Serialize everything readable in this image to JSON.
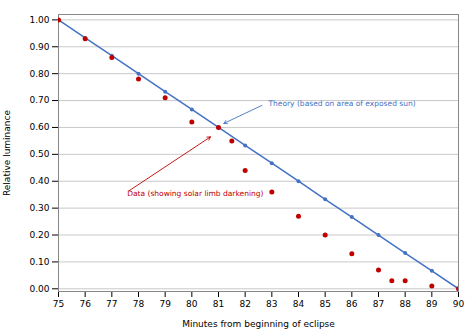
{
  "chart_data": {
    "type": "line",
    "xlabel": "Minutes from beginning of eclipse",
    "ylabel": "Relative luminance",
    "xlim": [
      75,
      90
    ],
    "ylim": [
      -0.01,
      1.02
    ],
    "xticks": [
      75,
      76,
      77,
      78,
      79,
      80,
      81,
      82,
      83,
      84,
      85,
      86,
      87,
      88,
      89,
      90
    ],
    "yticks": [
      {
        "value": 0.0,
        "label": "0.00"
      },
      {
        "value": 0.1,
        "label": "0.10"
      },
      {
        "value": 0.2,
        "label": "0.20"
      },
      {
        "value": 0.3,
        "label": "0.30"
      },
      {
        "value": 0.4,
        "label": "0.40"
      },
      {
        "value": 0.5,
        "label": "0.50"
      },
      {
        "value": 0.6,
        "label": "0.60"
      },
      {
        "value": 0.7,
        "label": "0.70"
      },
      {
        "value": 0.8,
        "label": "0.80"
      },
      {
        "value": 0.9,
        "label": "0.90"
      },
      {
        "value": 1.0,
        "label": "1.00"
      }
    ],
    "grid": "y",
    "series": [
      {
        "type": "line",
        "marker": "circle",
        "color": "#4472C4",
        "x": [
          75,
          76,
          77,
          78,
          79,
          80,
          81,
          82,
          83,
          84,
          85,
          86,
          87,
          88,
          89,
          90
        ],
        "values": [
          1.0,
          0.933,
          0.867,
          0.8,
          0.733,
          0.667,
          0.6,
          0.533,
          0.467,
          0.4,
          0.333,
          0.267,
          0.2,
          0.133,
          0.067,
          0.0
        ]
      },
      {
        "type": "scatter",
        "marker": "circle",
        "color": "#C00000",
        "x": [
          75,
          76,
          77,
          78,
          79,
          80,
          81,
          81.5,
          82,
          83,
          84,
          85,
          86,
          87,
          87.5,
          88,
          89,
          90
        ],
        "values": [
          1.0,
          0.93,
          0.86,
          0.78,
          0.71,
          0.62,
          0.6,
          0.55,
          0.44,
          0.36,
          0.27,
          0.2,
          0.13,
          0.07,
          0.03,
          0.03,
          0.01,
          0.0
        ]
      }
    ],
    "annotations": [
      {
        "text": "Theory (based on area of exposed sun)",
        "color": "#4472C4",
        "xy": [
          81.2,
          0.615
        ],
        "xytext": [
          82.8,
          0.69
        ]
      },
      {
        "text": "Data (showing solar limb darkening)",
        "color": "#C00000",
        "xy": [
          80.7,
          0.565
        ],
        "xytext": [
          77.5,
          0.355
        ]
      }
    ]
  }
}
